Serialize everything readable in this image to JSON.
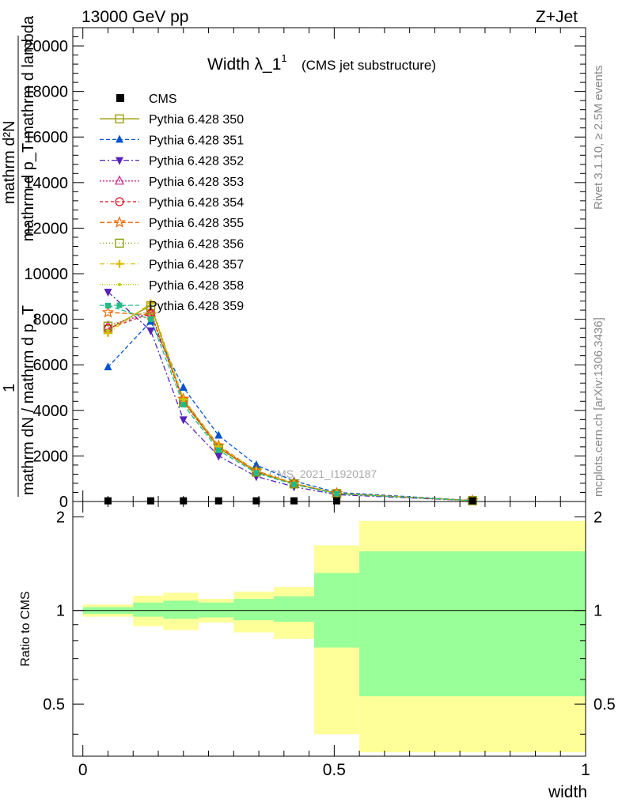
{
  "header": {
    "left": "13000 GeV pp",
    "right": "Z+Jet"
  },
  "side_labels": {
    "top": "Rivet 3.1.10, ≥ 2.5M events",
    "bottom": "mcplots.cern.ch [arXiv:1306.3436]"
  },
  "chart_data": [
    {
      "type": "line",
      "title": "Width λ_1",
      "title_superscript": "1",
      "subtitle": "(CMS jet substructure)",
      "watermark": "CMS_2021_I1920187",
      "ylabel_top": "mathrm d²N",
      "ylabel_mid": "mathrm d p_T mathrm d lambda",
      "ylabel_one": "1",
      "ylabel_bottom": "mathrm dN / mathrm d p_T",
      "xlim": [
        -0.02,
        1.0
      ],
      "ylim": [
        0,
        20800
      ],
      "yticks": [
        0,
        2000,
        4000,
        6000,
        8000,
        10000,
        12000,
        14000,
        16000,
        18000,
        20000
      ],
      "ytick_labels": [
        "0",
        "2000",
        "4000",
        "6000",
        "8000",
        "10000",
        "12000",
        "14000",
        "16000",
        "18000",
        "20000"
      ],
      "x": [
        0.05,
        0.135,
        0.2,
        0.27,
        0.345,
        0.42,
        0.505,
        0.775
      ],
      "data_series": {
        "name": "CMS",
        "color": "#000000",
        "values": [
          30,
          30,
          30,
          30,
          30,
          30,
          30,
          30
        ]
      },
      "series": [
        {
          "name": "Pythia 6.428 350",
          "color": "#999900",
          "dash": "",
          "marker": "square-open",
          "values": [
            7550,
            8600,
            4400,
            2350,
            1300,
            780,
            350,
            40
          ]
        },
        {
          "name": "Pythia 6.428 351",
          "color": "#0055cc",
          "dash": "5,3",
          "marker": "triangle-up-filled",
          "values": [
            5900,
            7900,
            5000,
            2900,
            1600,
            900,
            400,
            45
          ]
        },
        {
          "name": "Pythia 6.428 352",
          "color": "#5522bb",
          "dash": "7,3,2,3",
          "marker": "triangle-down-filled",
          "values": [
            9200,
            7500,
            3600,
            2000,
            1100,
            650,
            300,
            35
          ]
        },
        {
          "name": "Pythia 6.428 353",
          "color": "#cc2288",
          "dash": "2,2",
          "marker": "triangle-up-open",
          "values": [
            7700,
            8300,
            4450,
            2400,
            1320,
            790,
            355,
            40
          ]
        },
        {
          "name": "Pythia 6.428 354",
          "color": "#dd1122",
          "dash": "4,3",
          "marker": "circle-open",
          "values": [
            7600,
            8250,
            4400,
            2380,
            1310,
            780,
            350,
            40
          ]
        },
        {
          "name": "Pythia 6.428 355",
          "color": "#ee6600",
          "dash": "6,3",
          "marker": "star-open",
          "values": [
            8300,
            8200,
            4500,
            2450,
            1350,
            800,
            360,
            40
          ]
        },
        {
          "name": "Pythia 6.428 356",
          "color": "#889900",
          "dash": "1,3",
          "marker": "square-open",
          "values": [
            7700,
            8400,
            4350,
            2330,
            1290,
            770,
            345,
            40
          ]
        },
        {
          "name": "Pythia 6.428 357",
          "color": "#ddbb00",
          "dash": "6,3,1,3",
          "marker": "cross-filled",
          "values": [
            7400,
            8700,
            4500,
            2420,
            1330,
            790,
            350,
            40
          ]
        },
        {
          "name": "Pythia 6.428 358",
          "color": "#bbcc00",
          "dash": "1,2",
          "marker": "dot",
          "values": [
            7500,
            8650,
            4450,
            2400,
            1320,
            785,
            350,
            40
          ]
        },
        {
          "name": "Pythia 6.428 359",
          "color": "#22bb88",
          "dash": "6,3",
          "marker": "square-filled",
          "values": [
            8600,
            8000,
            4250,
            2250,
            1250,
            750,
            340,
            40
          ]
        }
      ]
    },
    {
      "type": "area",
      "ylabel": "Ratio to CMS",
      "xlabel": "width",
      "xlim": [
        -0.02,
        1.0
      ],
      "ylim": [
        0.34,
        2.24
      ],
      "xticks": [
        0,
        0.5,
        1
      ],
      "xtick_labels": [
        "0",
        "0.5",
        "1"
      ],
      "yticks": [
        0.5,
        1,
        2
      ],
      "ytick_labels": [
        "0.5",
        "1",
        "2"
      ],
      "reference_line": 1,
      "bins": [
        {
          "x0": 0.0,
          "x1": 0.1,
          "stat_lo": 0.975,
          "stat_hi": 1.025,
          "tot_lo": 0.955,
          "tot_hi": 1.045
        },
        {
          "x0": 0.1,
          "x1": 0.16,
          "stat_lo": 0.955,
          "stat_hi": 1.06,
          "tot_lo": 0.89,
          "tot_hi": 1.115
        },
        {
          "x0": 0.16,
          "x1": 0.23,
          "stat_lo": 0.94,
          "stat_hi": 1.075,
          "tot_lo": 0.865,
          "tot_hi": 1.14
        },
        {
          "x0": 0.23,
          "x1": 0.3,
          "stat_lo": 0.95,
          "stat_hi": 1.06,
          "tot_lo": 0.915,
          "tot_hi": 1.09
        },
        {
          "x0": 0.3,
          "x1": 0.38,
          "stat_lo": 0.93,
          "stat_hi": 1.09,
          "tot_lo": 0.85,
          "tot_hi": 1.15
        },
        {
          "x0": 0.38,
          "x1": 0.46,
          "stat_lo": 0.92,
          "stat_hi": 1.11,
          "tot_lo": 0.81,
          "tot_hi": 1.19
        },
        {
          "x0": 0.46,
          "x1": 0.55,
          "stat_lo": 0.76,
          "stat_hi": 1.32,
          "tot_lo": 0.4,
          "tot_hi": 1.62
        },
        {
          "x0": 0.55,
          "x1": 1.0,
          "stat_lo": 0.53,
          "stat_hi": 1.55,
          "tot_lo": 0.35,
          "tot_hi": 1.94
        }
      ]
    }
  ],
  "colors": {
    "stat_band": "#99ff99",
    "total_band": "#ffff99"
  }
}
